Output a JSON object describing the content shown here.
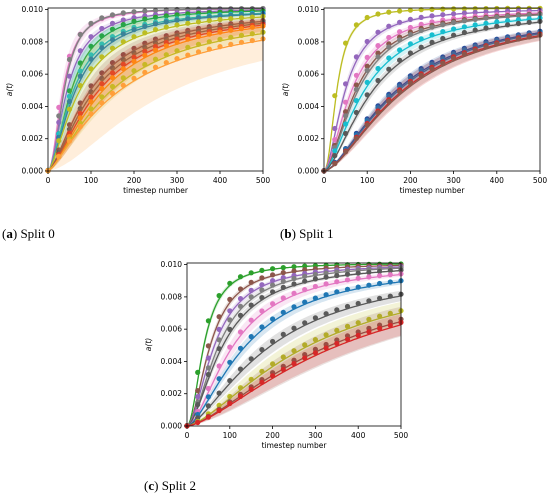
{
  "chart_data": [
    {
      "type": "line",
      "caption_tag": "a",
      "caption_text": "Split 0",
      "xlabel": "timestep number",
      "ylabel": "a(t)",
      "xlim": [
        0,
        500
      ],
      "ylim": [
        0,
        0.0101
      ],
      "xticks": [
        0,
        100,
        200,
        300,
        400,
        500
      ],
      "yticks": [
        0.0,
        0.002,
        0.004,
        0.006,
        0.008,
        0.01
      ],
      "grid": false,
      "series": [
        {
          "color": "#e377c2",
          "t50": 35,
          "p": 2.0,
          "band": 0.0008
        },
        {
          "color": "#7f7f7f",
          "t50": 38,
          "p": 2.2,
          "band": 0.0003
        },
        {
          "color": "#9467bd",
          "t50": 45,
          "p": 1.8,
          "band": 0.0005
        },
        {
          "color": "#2ca02c",
          "t50": 55,
          "p": 1.8,
          "band": 0.0006
        },
        {
          "color": "#17becf",
          "t50": 60,
          "p": 1.6,
          "band": 0.0012
        },
        {
          "color": "#1f77b4",
          "t50": 65,
          "p": 1.6,
          "band": 0.0004
        },
        {
          "color": "#bcbd22",
          "t50": 75,
          "p": 1.5,
          "band": 0.0015
        },
        {
          "color": "#8c564b",
          "t50": 100,
          "p": 1.5,
          "band": 0.0007
        },
        {
          "color": "#595959",
          "t50": 110,
          "p": 1.5,
          "band": 0.0005
        },
        {
          "color": "#d62728",
          "t50": 120,
          "p": 1.5,
          "band": 0.001
        },
        {
          "color": "#ff7f0e",
          "t50": 130,
          "p": 1.5,
          "band": 0.0008
        },
        {
          "color": "#bcbd22",
          "t50": 150,
          "p": 1.4,
          "band": 0.0006
        },
        {
          "color": "#ff9f3a",
          "t50": 170,
          "p": 1.3,
          "band": 0.002
        }
      ]
    },
    {
      "type": "line",
      "caption_tag": "b",
      "caption_text": "Split 1",
      "xlabel": "timestep number",
      "ylabel": "a(t)",
      "xlim": [
        0,
        500
      ],
      "ylim": [
        0,
        0.0101
      ],
      "xticks": [
        0,
        100,
        200,
        300,
        400,
        500
      ],
      "yticks": [
        0.0,
        0.002,
        0.004,
        0.006,
        0.008,
        0.01
      ],
      "grid": false,
      "series": [
        {
          "color": "#bcbd22",
          "t50": 30,
          "p": 2.2,
          "band": 0.0003
        },
        {
          "color": "#9467bd",
          "t50": 50,
          "p": 1.8,
          "band": 0.0004
        },
        {
          "color": "#e377c2",
          "t50": 65,
          "p": 1.7,
          "band": 0.0004
        },
        {
          "color": "#8c564b",
          "t50": 75,
          "p": 1.7,
          "band": 0.0004
        },
        {
          "color": "#7f7f7f",
          "t50": 80,
          "p": 1.7,
          "band": 0.0003
        },
        {
          "color": "#17becf",
          "t50": 95,
          "p": 1.6,
          "band": 0.0004
        },
        {
          "color": "#595959",
          "t50": 115,
          "p": 1.6,
          "band": 0.0003
        },
        {
          "color": "#2a4d9c",
          "t50": 170,
          "p": 1.6,
          "band": 0.0004
        },
        {
          "color": "#1f77b4",
          "t50": 175,
          "p": 1.6,
          "band": 0.0004
        },
        {
          "color": "#d62728",
          "t50": 185,
          "p": 1.6,
          "band": 0.0006
        },
        {
          "color": "#8c564b",
          "t50": 190,
          "p": 1.6,
          "band": 0.0004
        }
      ]
    },
    {
      "type": "line",
      "caption_tag": "c",
      "caption_text": "Split 2",
      "xlabel": "timestep number",
      "ylabel": "a(t)",
      "xlim": [
        0,
        500
      ],
      "ylim": [
        0,
        0.0101
      ],
      "xticks": [
        0,
        100,
        200,
        300,
        400,
        500
      ],
      "yticks": [
        0.0,
        0.002,
        0.004,
        0.006,
        0.008,
        0.01
      ],
      "grid": false,
      "series": [
        {
          "color": "#2ca02c",
          "t50": 40,
          "p": 2.0,
          "band": 0.0003
        },
        {
          "color": "#8c564b",
          "t50": 55,
          "p": 1.9,
          "band": 0.0003
        },
        {
          "color": "#9467bd",
          "t50": 65,
          "p": 1.8,
          "band": 0.0003
        },
        {
          "color": "#7f7f7f",
          "t50": 75,
          "p": 1.8,
          "band": 0.0003
        },
        {
          "color": "#595959",
          "t50": 85,
          "p": 1.7,
          "band": 0.0003
        },
        {
          "color": "#e377c2",
          "t50": 110,
          "p": 1.7,
          "band": 0.0005
        },
        {
          "color": "#1f77b4",
          "t50": 140,
          "p": 1.6,
          "band": 0.0004
        },
        {
          "color": "#595959",
          "t50": 200,
          "p": 1.5,
          "band": 0.0005
        },
        {
          "color": "#bcbd22",
          "t50": 290,
          "p": 1.5,
          "band": 0.0008
        },
        {
          "color": "#8c564b",
          "t50": 340,
          "p": 1.5,
          "band": 0.001
        },
        {
          "color": "#d62728",
          "t50": 360,
          "p": 1.5,
          "band": 0.0007
        }
      ]
    }
  ]
}
